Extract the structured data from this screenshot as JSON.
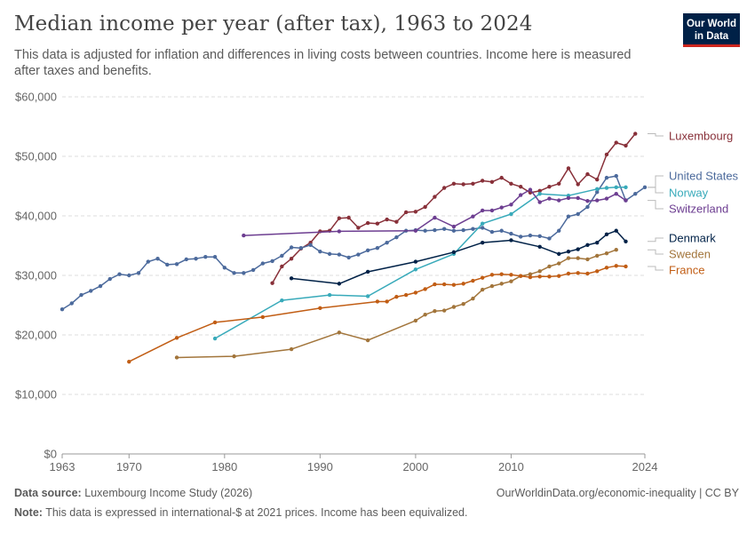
{
  "header": {
    "title": "Median income per year (after tax), 1963 to 2024",
    "subtitle": "This data is adjusted for inflation and differences in living costs between countries. Income here is measured after taxes and benefits."
  },
  "logo": {
    "line1": "Our World",
    "line2": "in Data",
    "bg_color": "#002147",
    "accent_color": "#ce261e"
  },
  "footer": {
    "source_label": "Data source:",
    "source_text": "Luxembourg Income Study (2026)",
    "url_text": "OurWorldinData.org/economic-inequality | CC BY",
    "note_label": "Note:",
    "note_text": "This data is expressed in international-$ at 2021 prices. Income has been equivalized."
  },
  "chart_data": {
    "type": "line",
    "title": "Median income per year (after tax), 1963 to 2024",
    "xlabel": "",
    "ylabel": "",
    "xlim": [
      1963,
      2024
    ],
    "ylim": [
      0,
      60000
    ],
    "x_ticks": [
      1963,
      1970,
      1980,
      1990,
      2000,
      2010,
      2024
    ],
    "y_ticks": [
      0,
      10000,
      20000,
      30000,
      40000,
      50000,
      60000
    ],
    "y_tick_labels": [
      "$0",
      "$10,000",
      "$20,000",
      "$30,000",
      "$40,000",
      "$50,000",
      "$60,000"
    ],
    "grid": "horizontal dashed",
    "legend": "right, labels at line ends",
    "series": [
      {
        "name": "Luxembourg",
        "color": "#883039",
        "points": [
          [
            1985,
            28700
          ],
          [
            1986,
            31500
          ],
          [
            1987,
            32800
          ],
          [
            1988,
            34500
          ],
          [
            1989,
            35500
          ],
          [
            1990,
            37400
          ],
          [
            1991,
            37500
          ],
          [
            1992,
            39600
          ],
          [
            1993,
            39700
          ],
          [
            1994,
            38000
          ],
          [
            1995,
            38800
          ],
          [
            1996,
            38700
          ],
          [
            1997,
            39400
          ],
          [
            1998,
            39000
          ],
          [
            1999,
            40600
          ],
          [
            2000,
            40700
          ],
          [
            2001,
            41500
          ],
          [
            2002,
            43200
          ],
          [
            2003,
            44700
          ],
          [
            2004,
            45400
          ],
          [
            2005,
            45300
          ],
          [
            2006,
            45400
          ],
          [
            2007,
            45900
          ],
          [
            2008,
            45700
          ],
          [
            2009,
            46400
          ],
          [
            2010,
            45400
          ],
          [
            2011,
            44900
          ],
          [
            2012,
            43900
          ],
          [
            2013,
            44200
          ],
          [
            2014,
            44900
          ],
          [
            2015,
            45400
          ],
          [
            2016,
            48000
          ],
          [
            2017,
            45300
          ],
          [
            2018,
            47000
          ],
          [
            2019,
            46100
          ],
          [
            2020,
            50300
          ],
          [
            2021,
            52300
          ],
          [
            2022,
            51800
          ],
          [
            2023,
            53800
          ]
        ]
      },
      {
        "name": "United States",
        "color": "#4c6a9c",
        "points": [
          [
            1963,
            24300
          ],
          [
            1964,
            25300
          ],
          [
            1965,
            26700
          ],
          [
            1966,
            27400
          ],
          [
            1967,
            28200
          ],
          [
            1968,
            29400
          ],
          [
            1969,
            30200
          ],
          [
            1970,
            30000
          ],
          [
            1971,
            30400
          ],
          [
            1972,
            32300
          ],
          [
            1973,
            32800
          ],
          [
            1974,
            31800
          ],
          [
            1975,
            31900
          ],
          [
            1976,
            32700
          ],
          [
            1977,
            32800
          ],
          [
            1978,
            33100
          ],
          [
            1979,
            33100
          ],
          [
            1980,
            31300
          ],
          [
            1981,
            30400
          ],
          [
            1982,
            30400
          ],
          [
            1983,
            30900
          ],
          [
            1984,
            32000
          ],
          [
            1985,
            32400
          ],
          [
            1986,
            33300
          ],
          [
            1987,
            34700
          ],
          [
            1988,
            34600
          ],
          [
            1989,
            35100
          ],
          [
            1990,
            34000
          ],
          [
            1991,
            33600
          ],
          [
            1992,
            33500
          ],
          [
            1993,
            33000
          ],
          [
            1994,
            33500
          ],
          [
            1995,
            34200
          ],
          [
            1996,
            34600
          ],
          [
            1997,
            35500
          ],
          [
            1998,
            36400
          ],
          [
            1999,
            37500
          ],
          [
            2000,
            37600
          ],
          [
            2001,
            37500
          ],
          [
            2002,
            37600
          ],
          [
            2003,
            37800
          ],
          [
            2004,
            37500
          ],
          [
            2005,
            37600
          ],
          [
            2006,
            37800
          ],
          [
            2007,
            38000
          ],
          [
            2008,
            37300
          ],
          [
            2009,
            37500
          ],
          [
            2010,
            37000
          ],
          [
            2011,
            36500
          ],
          [
            2012,
            36700
          ],
          [
            2013,
            36600
          ],
          [
            2014,
            36200
          ],
          [
            2015,
            37500
          ],
          [
            2016,
            39900
          ],
          [
            2017,
            40300
          ],
          [
            2018,
            41500
          ],
          [
            2019,
            44000
          ],
          [
            2020,
            46400
          ],
          [
            2021,
            46700
          ],
          [
            2022,
            42600
          ],
          [
            2023,
            43700
          ],
          [
            2024,
            44800
          ]
        ]
      },
      {
        "name": "Norway",
        "color": "#38aaba",
        "points": [
          [
            1979,
            19400
          ],
          [
            1986,
            25800
          ],
          [
            1991,
            26700
          ],
          [
            1995,
            26500
          ],
          [
            2000,
            31000
          ],
          [
            2004,
            33600
          ],
          [
            2007,
            38700
          ],
          [
            2010,
            40300
          ],
          [
            2013,
            43700
          ],
          [
            2016,
            43400
          ],
          [
            2019,
            44500
          ],
          [
            2020,
            44700
          ],
          [
            2021,
            44800
          ],
          [
            2022,
            44800
          ]
        ]
      },
      {
        "name": "Switzerland",
        "color": "#6d3e91",
        "points": [
          [
            1982,
            36700
          ],
          [
            1992,
            37400
          ],
          [
            2000,
            37500
          ],
          [
            2002,
            39700
          ],
          [
            2004,
            38200
          ],
          [
            2006,
            39900
          ],
          [
            2007,
            40900
          ],
          [
            2008,
            40900
          ],
          [
            2009,
            41400
          ],
          [
            2010,
            41900
          ],
          [
            2011,
            43500
          ],
          [
            2012,
            44400
          ],
          [
            2013,
            42300
          ],
          [
            2014,
            42900
          ],
          [
            2015,
            42600
          ],
          [
            2016,
            43000
          ],
          [
            2017,
            43000
          ],
          [
            2018,
            42500
          ],
          [
            2019,
            42600
          ],
          [
            2020,
            42900
          ],
          [
            2021,
            43700
          ],
          [
            2022,
            42600
          ]
        ]
      },
      {
        "name": "Denmark",
        "color": "#002147",
        "points": [
          [
            1987,
            29500
          ],
          [
            1992,
            28600
          ],
          [
            1995,
            30600
          ],
          [
            2000,
            32300
          ],
          [
            2004,
            33900
          ],
          [
            2007,
            35500
          ],
          [
            2010,
            35900
          ],
          [
            2013,
            34800
          ],
          [
            2015,
            33600
          ],
          [
            2016,
            34000
          ],
          [
            2017,
            34400
          ],
          [
            2018,
            35100
          ],
          [
            2019,
            35500
          ],
          [
            2020,
            36900
          ],
          [
            2021,
            37500
          ],
          [
            2022,
            35700
          ]
        ]
      },
      {
        "name": "Sweden",
        "color": "#a2753b",
        "points": [
          [
            1975,
            16200
          ],
          [
            1981,
            16400
          ],
          [
            1987,
            17600
          ],
          [
            1992,
            20400
          ],
          [
            1995,
            19100
          ],
          [
            2000,
            22400
          ],
          [
            2001,
            23400
          ],
          [
            2002,
            24000
          ],
          [
            2003,
            24100
          ],
          [
            2004,
            24700
          ],
          [
            2005,
            25200
          ],
          [
            2006,
            26100
          ],
          [
            2007,
            27600
          ],
          [
            2008,
            28200
          ],
          [
            2009,
            28600
          ],
          [
            2010,
            29000
          ],
          [
            2011,
            29900
          ],
          [
            2012,
            30200
          ],
          [
            2013,
            30700
          ],
          [
            2014,
            31500
          ],
          [
            2015,
            32000
          ],
          [
            2016,
            32900
          ],
          [
            2017,
            32900
          ],
          [
            2018,
            32700
          ],
          [
            2019,
            33300
          ],
          [
            2020,
            33700
          ],
          [
            2021,
            34300
          ]
        ]
      },
      {
        "name": "France",
        "color": "#c15d14",
        "points": [
          [
            1970,
            15500
          ],
          [
            1975,
            19500
          ],
          [
            1979,
            22100
          ],
          [
            1984,
            23000
          ],
          [
            1990,
            24500
          ],
          [
            1996,
            25600
          ],
          [
            1997,
            25600
          ],
          [
            1998,
            26400
          ],
          [
            1999,
            26700
          ],
          [
            2000,
            27100
          ],
          [
            2001,
            27700
          ],
          [
            2002,
            28500
          ],
          [
            2003,
            28500
          ],
          [
            2004,
            28400
          ],
          [
            2005,
            28600
          ],
          [
            2006,
            29100
          ],
          [
            2007,
            29600
          ],
          [
            2008,
            30100
          ],
          [
            2009,
            30200
          ],
          [
            2010,
            30100
          ],
          [
            2011,
            29900
          ],
          [
            2012,
            29700
          ],
          [
            2013,
            29800
          ],
          [
            2014,
            29800
          ],
          [
            2015,
            29900
          ],
          [
            2016,
            30300
          ],
          [
            2017,
            30400
          ],
          [
            2018,
            30300
          ],
          [
            2019,
            30700
          ],
          [
            2020,
            31300
          ],
          [
            2021,
            31600
          ],
          [
            2022,
            31500
          ]
        ]
      }
    ]
  }
}
